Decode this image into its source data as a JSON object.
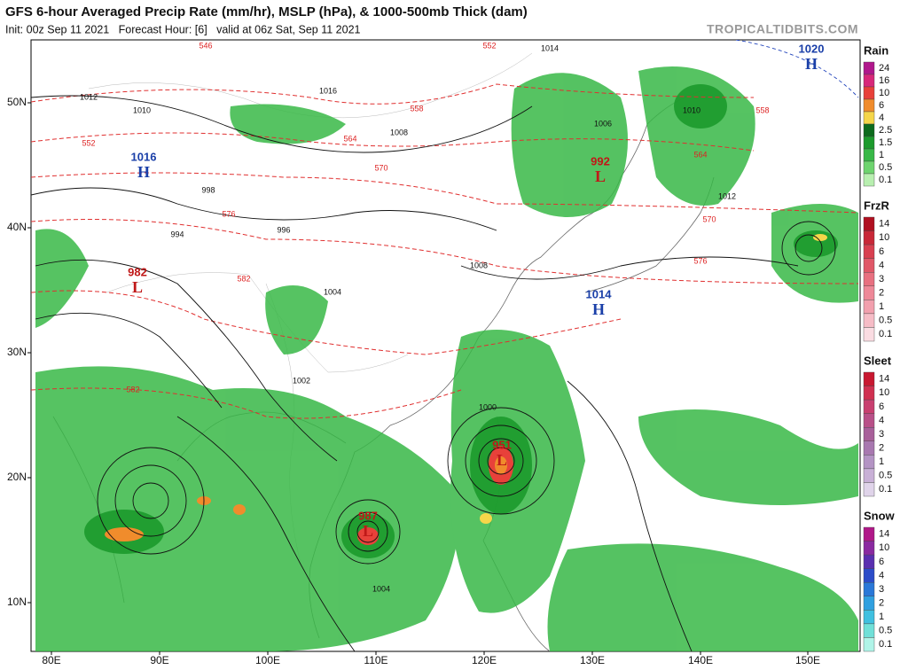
{
  "header": {
    "title": "GFS 6-hour Averaged Precip Rate (mm/hr), MSLP (hPa), & 1000-500mb Thick (dam)",
    "subtitle": "Init: 00z Sep 11 2021   Forecast Hour: [6]   valid at 06z Sat, Sep 11 2021",
    "watermark": "TROPICALTIDBITS.COM"
  },
  "axes": {
    "latitudes": [
      "50N",
      "40N",
      "30N",
      "20N",
      "10N"
    ],
    "longitudes": [
      "80E",
      "90E",
      "100E",
      "110E",
      "120E",
      "130E",
      "140E",
      "150E"
    ]
  },
  "pressure_centers": [
    {
      "symbol": "H",
      "value": 1016
    },
    {
      "symbol": "H",
      "value": 1020
    },
    {
      "symbol": "L",
      "value": 992
    },
    {
      "symbol": "L",
      "value": 982
    },
    {
      "symbol": "H",
      "value": 1014
    },
    {
      "symbol": "L",
      "value": 951
    },
    {
      "symbol": "L",
      "value": 987
    }
  ],
  "contour_labels": [
    1014,
    1012,
    1010,
    1008,
    1006,
    1004,
    1002,
    1000,
    998,
    996,
    994,
    1016,
    1012,
    1010,
    1008,
    1004
  ],
  "thickness_labels": [
    546,
    552,
    558,
    564,
    570,
    576,
    582,
    552,
    558,
    564,
    570,
    576,
    582
  ],
  "legends": [
    {
      "title": "Rain",
      "items": [
        {
          "label": 24,
          "color": "#b0188c"
        },
        {
          "label": 16,
          "color": "#d8287a"
        },
        {
          "label": 10,
          "color": "#e8413a"
        },
        {
          "label": 6,
          "color": "#f08c2c"
        },
        {
          "label": 4,
          "color": "#f5d64a"
        },
        {
          "label": 2.5,
          "color": "#0d6b1d"
        },
        {
          "label": 1.5,
          "color": "#1c9a2c"
        },
        {
          "label": 1,
          "color": "#38b847"
        },
        {
          "label": 0.5,
          "color": "#6ed46f"
        },
        {
          "label": 0.1,
          "color": "#b8efb0"
        }
      ]
    },
    {
      "title": "FrzR",
      "items": [
        {
          "label": 14,
          "color": "#b01020"
        },
        {
          "label": 10,
          "color": "#c82838"
        },
        {
          "label": 6,
          "color": "#d84050"
        },
        {
          "label": 4,
          "color": "#e05868"
        },
        {
          "label": 3,
          "color": "#e87080"
        },
        {
          "label": 2,
          "color": "#ee8898"
        },
        {
          "label": 1,
          "color": "#f2a0ae"
        },
        {
          "label": 0.5,
          "color": "#f6bcc6"
        },
        {
          "label": 0.1,
          "color": "#fadce2"
        }
      ]
    },
    {
      "title": "Sleet",
      "items": [
        {
          "label": 14,
          "color": "#c81830"
        },
        {
          "label": 10,
          "color": "#d03050"
        },
        {
          "label": 6,
          "color": "#c84070"
        },
        {
          "label": 4,
          "color": "#b85088"
        },
        {
          "label": 3,
          "color": "#a8609a"
        },
        {
          "label": 2,
          "color": "#a878b0"
        },
        {
          "label": 1,
          "color": "#b494c4"
        },
        {
          "label": 0.5,
          "color": "#c8b0d6"
        },
        {
          "label": 0.1,
          "color": "#e0d4ea"
        }
      ]
    },
    {
      "title": "Snow",
      "items": [
        {
          "label": 14,
          "color": "#b01888"
        },
        {
          "label": 10,
          "color": "#8a2aa0"
        },
        {
          "label": 6,
          "color": "#5a30b0"
        },
        {
          "label": 4,
          "color": "#2c4cc8"
        },
        {
          "label": 3,
          "color": "#2a78d8"
        },
        {
          "label": 2,
          "color": "#30a0e0"
        },
        {
          "label": 1,
          "color": "#40c0e0"
        },
        {
          "label": 0.5,
          "color": "#70e0d8"
        },
        {
          "label": 0.1,
          "color": "#b0f4e8"
        }
      ]
    }
  ]
}
